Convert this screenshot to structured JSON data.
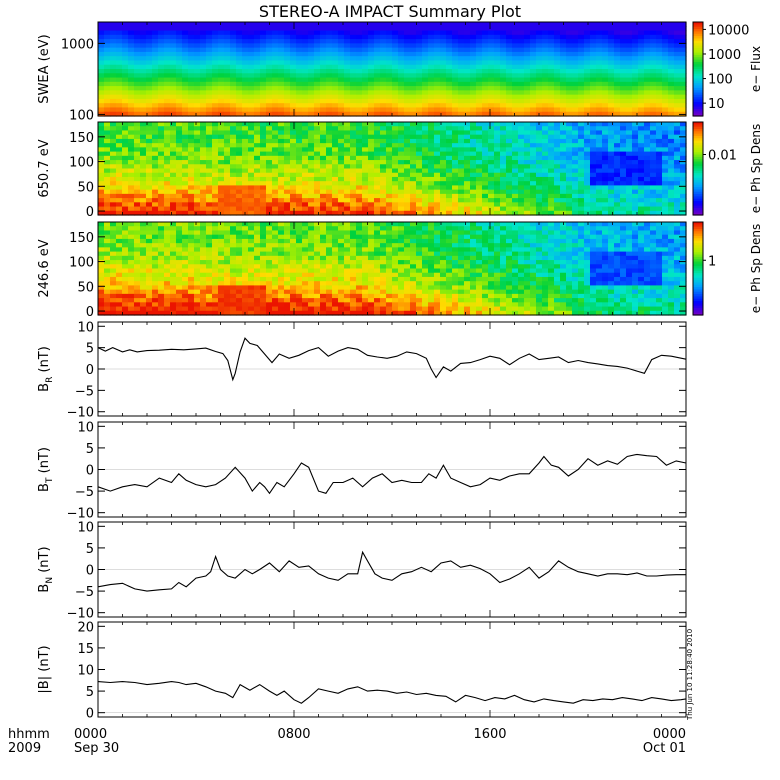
{
  "title": "STEREO-A IMPACT Summary Plot",
  "footer": {
    "left_top": "hhmm",
    "left_bottom": "2009",
    "x_ticks": [
      {
        "top": "0000",
        "bottom": "Sep 30",
        "hour": 0
      },
      {
        "top": "0800",
        "bottom": "",
        "hour": 8
      },
      {
        "top": "1600",
        "bottom": "",
        "hour": 16
      },
      {
        "top": "0000",
        "bottom": "Oct 01",
        "hour": 24
      }
    ]
  },
  "timestamp": "Thu Jun 10 11:28:40 2010",
  "chart_data": [
    {
      "type": "heatmap",
      "ylabel": "SWEA (eV)",
      "ylog": true,
      "ylim": [
        95,
        2000
      ],
      "yticks": [
        {
          "v": 100,
          "label": "100"
        },
        {
          "v": 1000,
          "label": "1000"
        }
      ],
      "colorbar": {
        "label": "e− Flux",
        "log": true,
        "range": [
          3,
          20000
        ],
        "ticks": [
          {
            "v": 10,
            "label": "10"
          },
          {
            "v": 100,
            "label": "100"
          },
          {
            "v": 1000,
            "label": "1000"
          },
          {
            "v": 10000,
            "label": "10000"
          }
        ]
      }
    },
    {
      "type": "heatmap",
      "ylabel": "650.7 eV",
      "ylim": [
        -8,
        180
      ],
      "yticks": [
        {
          "v": 0,
          "label": "0"
        },
        {
          "v": 50,
          "label": "50"
        },
        {
          "v": 100,
          "label": "100"
        },
        {
          "v": 150,
          "label": "150"
        }
      ],
      "colorbar": {
        "label": "e− Ph Sp Dens",
        "log": true,
        "range": [
          0.0005,
          0.05
        ],
        "ticks": [
          {
            "v": 0.01,
            "label": "0.01"
          }
        ]
      }
    },
    {
      "type": "heatmap",
      "ylabel": "246.6 eV",
      "ylim": [
        -8,
        180
      ],
      "yticks": [
        {
          "v": 0,
          "label": "0"
        },
        {
          "v": 50,
          "label": "50"
        },
        {
          "v": 100,
          "label": "100"
        },
        {
          "v": 150,
          "label": "150"
        }
      ],
      "colorbar": {
        "label": "e− Ph Sp Dens",
        "log": true,
        "range": [
          0.1,
          5
        ],
        "ticks": [
          {
            "v": 1,
            "label": "1"
          }
        ]
      }
    },
    {
      "type": "line",
      "ylabel_main": "B",
      "ylabel_sub": "R",
      "ylabel_unit": " (nT)",
      "ylim": [
        -11,
        11
      ],
      "yticks": [
        {
          "v": -10,
          "label": "−10"
        },
        {
          "v": -5,
          "label": "−5"
        },
        {
          "v": 0,
          "label": "0"
        },
        {
          "v": 5,
          "label": "5"
        },
        {
          "v": 10,
          "label": "10"
        }
      ],
      "x": [
        0,
        0.3,
        0.6,
        1,
        1.3,
        1.6,
        2,
        2.5,
        3,
        3.5,
        4,
        4.4,
        4.8,
        5.1,
        5.3,
        5.5,
        5.6,
        5.8,
        6,
        6.2,
        6.5,
        6.8,
        7.1,
        7.4,
        7.8,
        8.2,
        8.6,
        9,
        9.4,
        9.8,
        10.2,
        10.6,
        11,
        11.4,
        11.8,
        12.2,
        12.6,
        13,
        13.4,
        13.6,
        13.8,
        14.1,
        14.4,
        14.8,
        15.2,
        15.6,
        16,
        16.4,
        16.8,
        17.2,
        17.6,
        18,
        18.4,
        18.8,
        19.2,
        19.6,
        20,
        20.4,
        20.8,
        21.2,
        21.6,
        22,
        22.3,
        22.6,
        23,
        23.4,
        24
      ],
      "y": [
        5,
        4.2,
        5,
        4,
        4.5,
        4,
        4.3,
        4.4,
        4.6,
        4.5,
        4.7,
        4.9,
        4.1,
        3.6,
        2,
        -2.5,
        -1,
        4,
        7.2,
        6,
        5.5,
        3.5,
        1.5,
        3.5,
        2.5,
        3.2,
        4.3,
        5,
        3,
        4.2,
        5,
        4.6,
        3.2,
        2.8,
        2.5,
        3,
        4,
        3.6,
        2.5,
        0,
        -2,
        0.5,
        -0.5,
        1.3,
        1.5,
        2.2,
        3,
        2.5,
        1,
        2.5,
        3.5,
        2.2,
        2.5,
        2.8,
        1.5,
        2,
        1.5,
        1.2,
        0.8,
        0.6,
        0.2,
        -0.5,
        -1,
        2.2,
        3.2,
        3,
        2.3
      ]
    },
    {
      "type": "line",
      "ylabel_main": "B",
      "ylabel_sub": "T",
      "ylabel_unit": " (nT)",
      "ylim": [
        -11,
        11
      ],
      "yticks": [
        {
          "v": -10,
          "label": "−10"
        },
        {
          "v": -5,
          "label": "−5"
        },
        {
          "v": 0,
          "label": "0"
        },
        {
          "v": 5,
          "label": "5"
        },
        {
          "v": 10,
          "label": "10"
        }
      ],
      "x": [
        0,
        0.5,
        1,
        1.5,
        2,
        2.5,
        3,
        3.3,
        3.6,
        4,
        4.4,
        4.8,
        5.2,
        5.6,
        6,
        6.3,
        6.6,
        6.8,
        7,
        7.3,
        7.6,
        8,
        8.3,
        8.6,
        9,
        9.3,
        9.6,
        10,
        10.4,
        10.8,
        11.2,
        11.6,
        12,
        12.4,
        12.8,
        13.2,
        13.5,
        13.8,
        14.1,
        14.4,
        14.8,
        15.2,
        15.6,
        16,
        16.4,
        16.8,
        17.2,
        17.6,
        18,
        18.2,
        18.5,
        18.8,
        19.2,
        19.6,
        20,
        20.4,
        20.8,
        21.2,
        21.6,
        22,
        22.4,
        22.8,
        23.2,
        23.6,
        24
      ],
      "y": [
        -4,
        -5,
        -4,
        -3.5,
        -4,
        -2,
        -3,
        -1,
        -2.5,
        -3.5,
        -4,
        -3.5,
        -2,
        0.5,
        -2,
        -5,
        -3,
        -4,
        -5.5,
        -3,
        -4,
        -1,
        1.5,
        0.5,
        -5,
        -5.5,
        -3,
        -3,
        -2,
        -4,
        -2,
        -1,
        -3,
        -2.5,
        -3,
        -3,
        -1,
        -2,
        1,
        -2,
        -3,
        -4,
        -3.5,
        -2,
        -2.5,
        -1.5,
        -1,
        -1,
        1.5,
        3,
        1,
        0.5,
        -1.5,
        0,
        2.5,
        1,
        2,
        1.2,
        3,
        3.5,
        3.2,
        3,
        1,
        2,
        1.5
      ]
    },
    {
      "type": "line",
      "ylabel_main": "B",
      "ylabel_sub": "N",
      "ylabel_unit": " (nT)",
      "ylim": [
        -11,
        11
      ],
      "yticks": [
        {
          "v": -10,
          "label": "−10"
        },
        {
          "v": -5,
          "label": "−5"
        },
        {
          "v": 0,
          "label": "0"
        },
        {
          "v": 5,
          "label": "5"
        },
        {
          "v": 10,
          "label": "10"
        }
      ],
      "x": [
        0,
        0.5,
        1,
        1.5,
        2,
        2.5,
        3,
        3.3,
        3.6,
        4,
        4.4,
        4.6,
        4.8,
        5,
        5.3,
        5.6,
        6,
        6.3,
        6.6,
        7,
        7.4,
        7.8,
        8.2,
        8.6,
        9,
        9.4,
        9.8,
        10.2,
        10.6,
        10.8,
        11,
        11.3,
        11.6,
        12,
        12.4,
        12.8,
        13.2,
        13.6,
        14,
        14.4,
        14.8,
        15.2,
        15.6,
        16,
        16.4,
        16.8,
        17.2,
        17.6,
        18,
        18.4,
        18.8,
        19.2,
        19.6,
        20,
        20.4,
        20.8,
        21.2,
        21.6,
        22,
        22.4,
        22.8,
        23.2,
        23.6,
        24
      ],
      "y": [
        -4,
        -3.5,
        -3.2,
        -4.5,
        -5,
        -4.7,
        -4.5,
        -3,
        -4,
        -2,
        -1.5,
        -0.5,
        3,
        0,
        -1.5,
        -2,
        0,
        -1,
        0,
        1.5,
        -0.5,
        2,
        0.5,
        0.8,
        -1,
        -2,
        -2.5,
        -1,
        -1,
        4,
        2,
        -1,
        -2,
        -2.5,
        -1,
        -0.5,
        0.5,
        -0.5,
        1.5,
        2,
        0.5,
        1,
        0.2,
        -1,
        -3,
        -2.2,
        -1,
        0.5,
        -2,
        -0.5,
        2,
        0.5,
        -0.5,
        -1,
        -1.5,
        -1,
        -1,
        -1.2,
        -0.8,
        -1.5,
        -1.5,
        -1.3,
        -1.2,
        -1.2
      ]
    },
    {
      "type": "line",
      "ylabel_main": "|B|",
      "ylabel_sub": "",
      "ylabel_unit": " (nT)",
      "ylim": [
        -1,
        21
      ],
      "yticks": [
        {
          "v": 0,
          "label": "0"
        },
        {
          "v": 5,
          "label": "5"
        },
        {
          "v": 10,
          "label": "10"
        },
        {
          "v": 15,
          "label": "15"
        },
        {
          "v": 20,
          "label": "20"
        }
      ],
      "x": [
        0,
        0.5,
        1,
        1.5,
        2,
        2.5,
        3,
        3.3,
        3.6,
        4,
        4.4,
        4.8,
        5.2,
        5.5,
        5.8,
        6.2,
        6.6,
        7,
        7.3,
        7.6,
        8,
        8.3,
        8.6,
        9,
        9.4,
        9.8,
        10.2,
        10.6,
        11,
        11.4,
        11.8,
        12.2,
        12.6,
        13,
        13.4,
        13.8,
        14.2,
        14.6,
        15,
        15.4,
        15.8,
        16.2,
        16.6,
        17,
        17.4,
        17.8,
        18.2,
        18.6,
        19,
        19.4,
        19.8,
        20.2,
        20.6,
        21,
        21.4,
        21.8,
        22.2,
        22.6,
        23,
        23.4,
        23.8,
        24
      ],
      "y": [
        7.2,
        7,
        7.2,
        7,
        6.5,
        6.8,
        7.2,
        7,
        6.5,
        6.8,
        6,
        5,
        4.5,
        3.5,
        6.5,
        5.2,
        6.5,
        5,
        4,
        5,
        3,
        2.2,
        3.5,
        5.5,
        5,
        4.5,
        5.5,
        6,
        5,
        5.2,
        5,
        4.5,
        4.8,
        4.2,
        4.5,
        4,
        3.8,
        2.5,
        4,
        3.5,
        2.8,
        3.5,
        3.2,
        4,
        3,
        2.5,
        3.2,
        2.8,
        2.5,
        2.2,
        3,
        2.8,
        3.2,
        3,
        3.5,
        3.2,
        2.8,
        3.5,
        3.2,
        2.8,
        3,
        3.2
      ]
    }
  ]
}
